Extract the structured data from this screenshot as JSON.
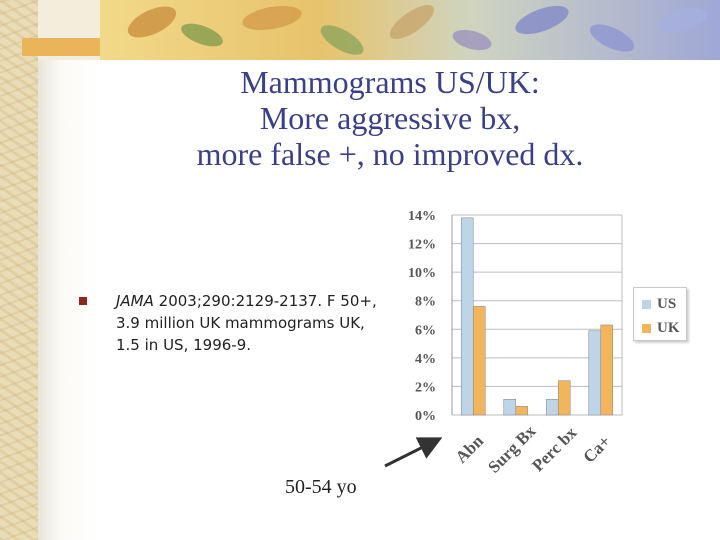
{
  "slide": {
    "title_lines": [
      "Mammograms US/UK:",
      "More aggressive bx,",
      "more false +, no improved dx."
    ],
    "reference": {
      "journal": "JAMA",
      "citation": " 2003;290:2129-2137.",
      "details": "F 50+, 3.9 million UK mammograms UK, 1.5 in US, 1996-9."
    },
    "age_note": "50-54 yo"
  },
  "chart_data": {
    "type": "bar",
    "categories": [
      "Abn",
      "Surg Bx",
      "Perc bx",
      "Ca+"
    ],
    "series": [
      {
        "name": "US",
        "values": [
          13.8,
          1.1,
          1.1,
          5.9
        ],
        "color": "#bed5e8"
      },
      {
        "name": "UK",
        "values": [
          7.6,
          0.6,
          2.4,
          6.3
        ],
        "color": "#f3b55b"
      }
    ],
    "ylim": [
      0,
      14
    ],
    "y_ticks": [
      "0%",
      "2%",
      "4%",
      "6%",
      "8%",
      "10%",
      "12%",
      "14%"
    ],
    "grid": true,
    "legend": "right"
  }
}
